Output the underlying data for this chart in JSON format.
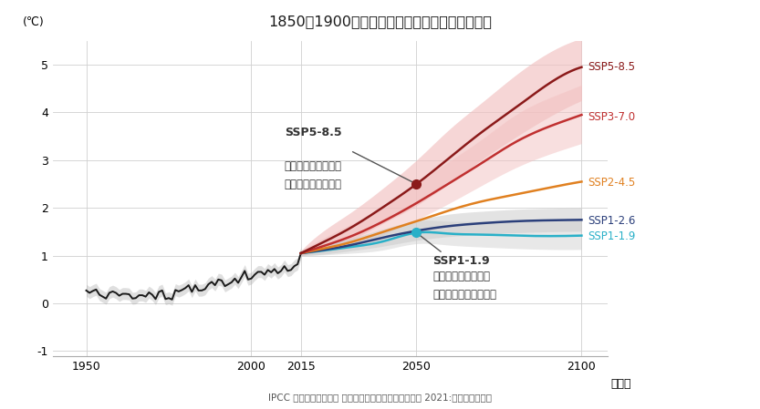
{
  "title": "1850～1900年を基準とした世界平均気温の変化",
  "ylabel": "(℃)",
  "xlabel": "（年）",
  "source": "IPCC 第６次評価報告書 第１作業部会報告書｜気候変動 2021:自然科学的根拠",
  "xlim": [
    1940,
    2108
  ],
  "ylim": [
    -1.1,
    5.5
  ],
  "xticks": [
    1950,
    2000,
    2015,
    2050,
    2100
  ],
  "yticks": [
    -1,
    0,
    1,
    2,
    3,
    4,
    5
  ],
  "bg_color": "#ffffff",
  "obs_color": "#1a1a1a",
  "obs_band_color": "#b0b0b0",
  "ssp585_line": "#8B1A1A",
  "ssp370_line": "#C03030",
  "ssp245_line": "#E08020",
  "ssp126_line": "#2B3F7A",
  "ssp119_line": "#29B0C8",
  "ssp585_label": "#8B1A1A",
  "ssp370_label": "#C03030",
  "ssp245_label": "#E08020",
  "ssp126_label": "#2B3F7A",
  "ssp119_label": "#29B0C8",
  "band_red_color": "#f0c0c0",
  "band_grey_color": "#cccccc",
  "annot_color": "#333333",
  "grid_color": "#d0d0d0",
  "annot585_title": "SSP5-8.5",
  "annot585_body": "温室効果ガス排出が\n非常に多いシナリオ",
  "annot119_title": "SSP1-1.9",
  "annot119_body": "温室効果ガス排出が\n非常に少ないシナリオ",
  "lbl585": "SSP5-8.5",
  "lbl370": "SSP3-7.0",
  "lbl245": "SSP2-4.5",
  "lbl126": "SSP1-2.6",
  "lbl119": "SSP1-1.9"
}
